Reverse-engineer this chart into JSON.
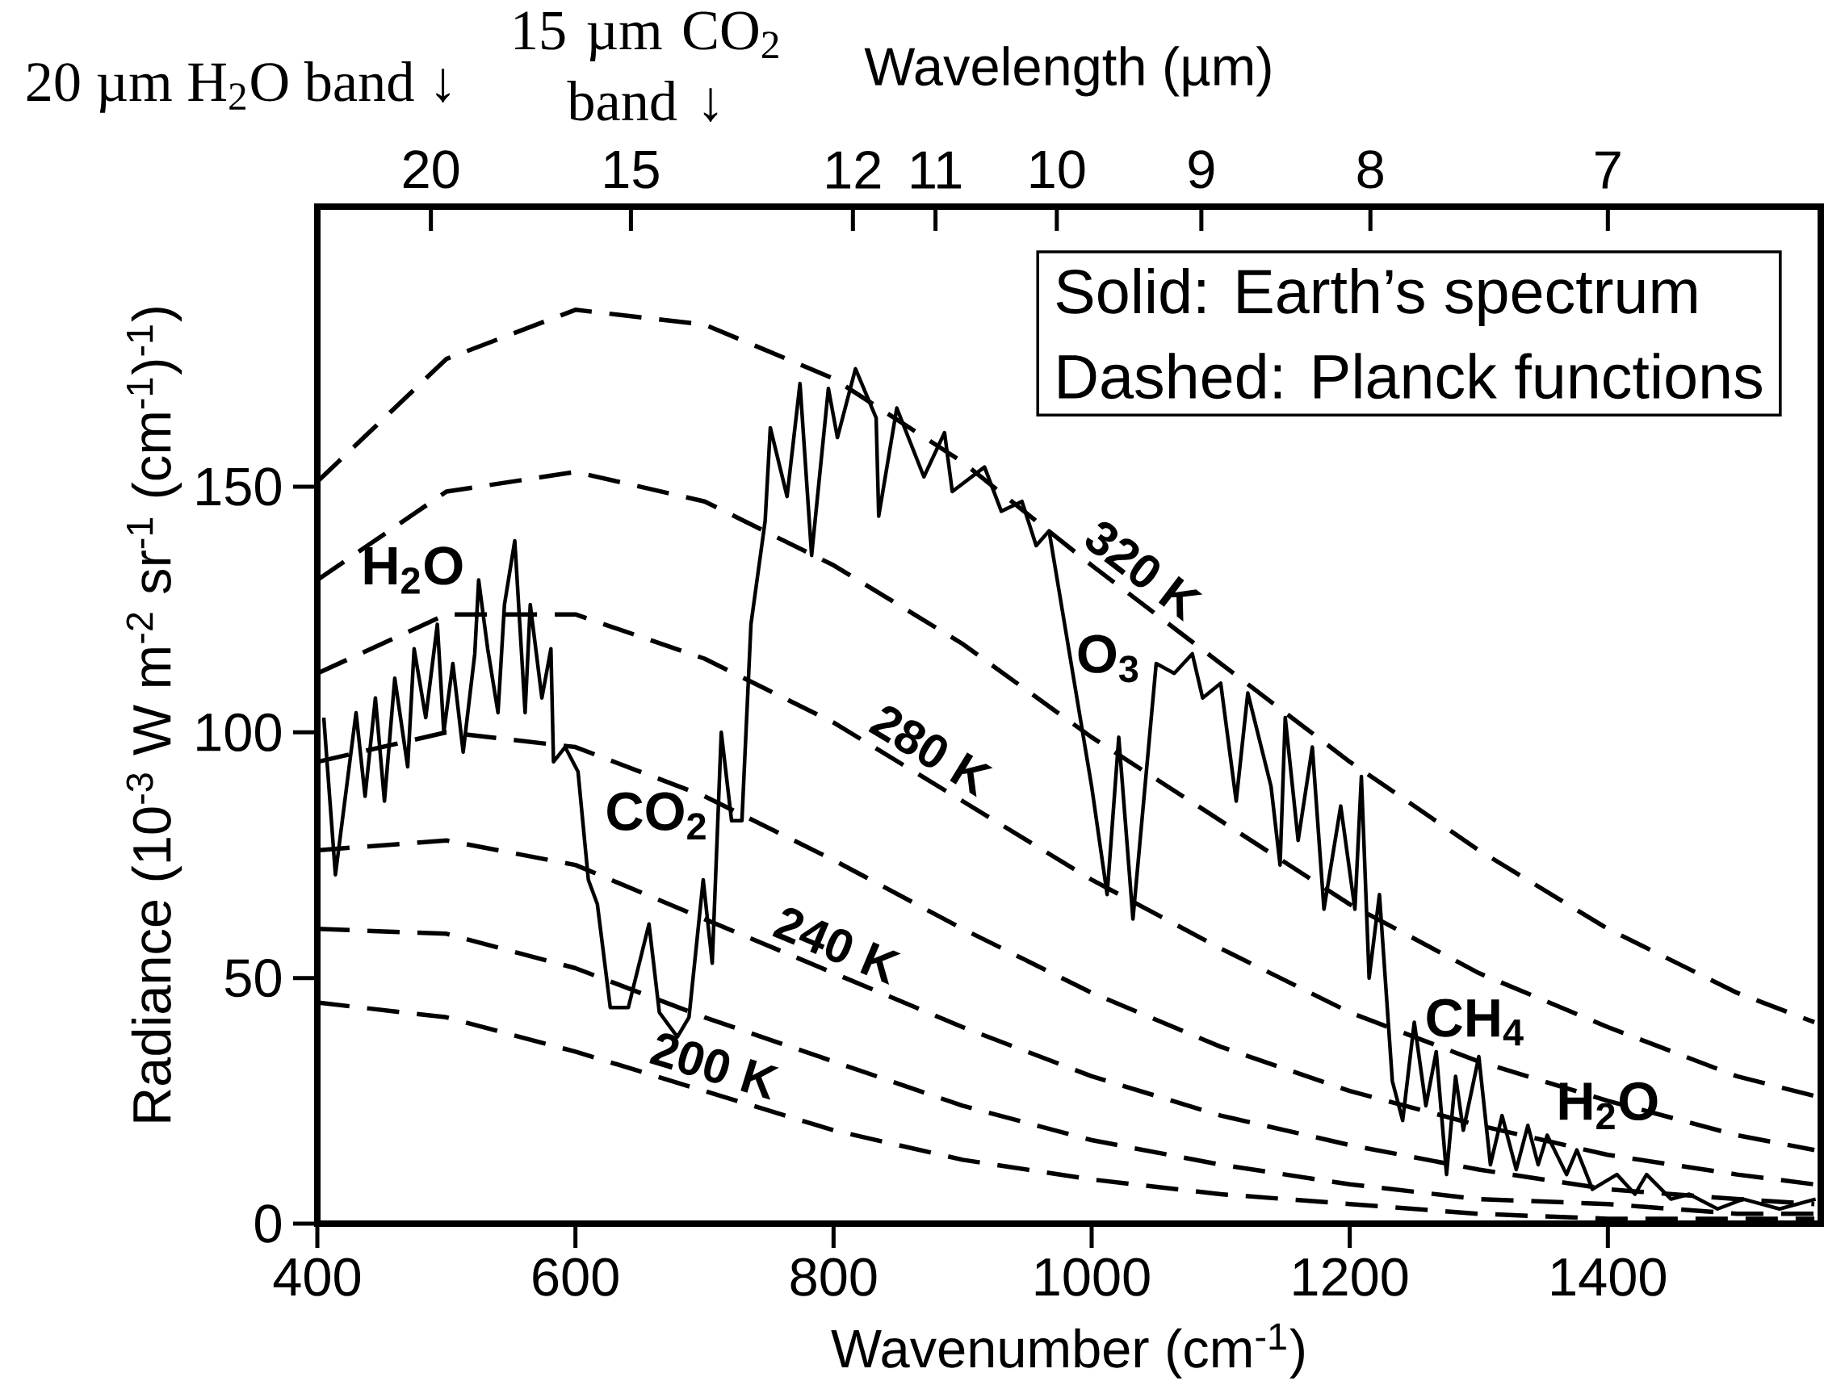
{
  "chart_data": {
    "type": "line",
    "xlabel": "Wavenumber (cm$^{-1}$)",
    "ylabel": "Radiance (10$^{-3}$ W m$^{-2}$ sr$^{-1}$ (cm$^{-1}$)$^{-1}$)",
    "x2label": "Wavelength (µm)",
    "xlim": [
      400,
      1565
    ],
    "ylim": [
      0,
      207
    ],
    "xticks": [
      400,
      600,
      800,
      1000,
      1200,
      1400
    ],
    "yticks": [
      0,
      50,
      100,
      150
    ],
    "x": [
      400,
      500,
      600,
      700,
      800,
      900,
      1000,
      1100,
      1200,
      1300,
      1400,
      1500,
      1560
    ],
    "series": [
      {
        "color": "#000000",
        "line_style": "solid",
        "x": [
          405,
          414,
          430,
          437,
          445,
          452,
          460,
          470,
          475,
          484,
          493,
          498,
          505,
          513,
          522,
          525,
          532,
          540,
          545,
          553,
          561,
          565,
          574,
          581,
          583,
          592,
          602,
          610,
          617,
          627,
          641,
          657,
          665,
          679,
          688,
          699,
          706,
          713,
          721,
          729,
          736,
          747,
          751,
          764,
          774,
          783,
          796,
          803,
          817,
          833,
          835,
          849,
          870,
          886,
          892,
          917,
          930,
          946,
          957,
          967,
          1000,
          1012,
          1021,
          1032,
          1050,
          1064,
          1078,
          1086,
          1100,
          1112,
          1121,
          1139,
          1146,
          1150,
          1160,
          1171,
          1180,
          1193,
          1204,
          1209,
          1215,
          1223,
          1233,
          1241,
          1250,
          1259,
          1267,
          1275,
          1282,
          1288,
          1300,
          1309,
          1318,
          1329,
          1338,
          1346,
          1353,
          1368,
          1376,
          1388,
          1407,
          1421,
          1430,
          1449,
          1463,
          1485,
          1505,
          1533,
          1561
        ],
        "values": [
          103,
          71,
          104,
          87,
          107,
          86,
          111,
          93,
          117,
          103,
          122,
          100,
          114,
          96,
          116,
          131,
          117,
          104,
          126,
          139,
          104,
          126,
          107,
          117,
          94,
          97,
          92,
          70,
          65,
          44,
          44,
          61,
          43,
          38,
          42,
          70,
          53,
          100,
          82,
          82,
          122,
          143,
          162,
          148,
          171,
          136,
          170,
          160,
          174,
          164,
          144,
          166,
          152,
          161,
          149,
          154,
          145,
          147,
          138,
          141,
          89,
          67,
          99,
          62,
          114,
          112,
          116,
          107,
          110,
          86,
          108,
          89,
          73,
          103,
          78,
          97,
          64,
          85,
          64,
          91,
          50,
          67,
          29,
          21,
          41,
          24,
          35,
          10,
          30,
          19,
          34,
          12,
          22,
          11,
          20,
          12,
          18,
          10,
          15,
          7,
          10,
          6,
          10,
          5,
          6,
          3,
          5,
          3,
          5
        ]
      },
      {
        "name": "320 K",
        "color": "#000000",
        "line_style": "dashed",
        "values": [
          151,
          176,
          186,
          183,
          172,
          155,
          134,
          114,
          94,
          76,
          60,
          47,
          41
        ]
      },
      {
        "color": "#000000",
        "line_style": "dashed",
        "values": [
          131,
          149,
          153,
          147,
          134,
          118,
          99,
          82,
          65,
          51,
          40,
          30,
          26
        ]
      },
      {
        "name": "280 K",
        "color": "#000000",
        "line_style": "dashed",
        "values": [
          112,
          124,
          124,
          115,
          102,
          86,
          70,
          56,
          43,
          33,
          25,
          18,
          15
        ]
      },
      {
        "color": "#000000",
        "line_style": "dashed",
        "values": [
          94,
          100,
          97,
          87,
          74,
          60,
          47,
          36,
          27,
          20,
          14,
          10,
          8
        ]
      },
      {
        "name": "240 K",
        "color": "#000000",
        "line_style": "dashed",
        "values": [
          76,
          78,
          73,
          62,
          51,
          40,
          30,
          22,
          16,
          11,
          7,
          5,
          4
        ]
      },
      {
        "color": "#000000",
        "line_style": "dashed",
        "values": [
          60,
          59,
          52,
          42,
          33,
          24,
          17,
          12,
          8,
          5,
          4,
          2,
          2
        ]
      },
      {
        "name": "200 K",
        "color": "#000000",
        "line_style": "dashed",
        "values": [
          45,
          42,
          35,
          27,
          19,
          13,
          9,
          6,
          4,
          2,
          1,
          1,
          1
        ]
      }
    ],
    "annotations": [
      "20 µm H$_{2}$O band ↓",
      "15 µm CO$_{2}$ band ↓",
      "Solid: Earth’s spectrum",
      "Dashed: Planck functions",
      "20",
      "15",
      "12",
      "11",
      "10",
      "9",
      "8",
      "7",
      "H$_{2}$O",
      "CO$_{2}$",
      "O$_{3}$",
      "CH$_{4}$",
      "H$_{2}$O"
    ]
  }
}
